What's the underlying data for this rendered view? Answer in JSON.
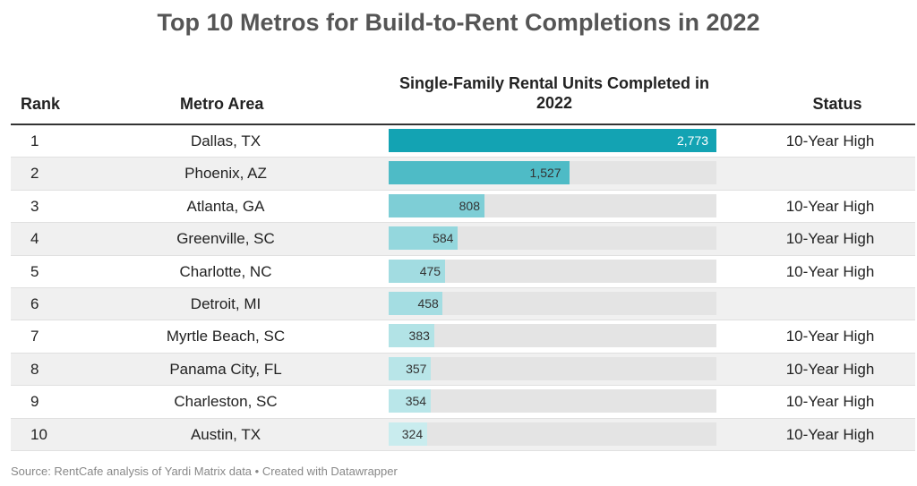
{
  "title": "Top 10 Metros for Build-to-Rent Completions in 2022",
  "headers": {
    "rank": "Rank",
    "metro": "Metro Area",
    "units": "Single-Family Rental Units Completed in 2022",
    "status": "Status"
  },
  "source": "Source: RentCafe analysis of Yardi Matrix data • Created with Datawrapper",
  "colors": {
    "bar_max": "#13a3b3",
    "bar_min": "#c9ecee",
    "track": "#e4e4e4"
  },
  "chart_data": {
    "type": "table",
    "xlim": [
      0,
      2773
    ],
    "rows": [
      {
        "rank": "1",
        "metro": "Dallas, TX",
        "units": 2773,
        "units_label": "2,773",
        "status": "10-Year High"
      },
      {
        "rank": "2",
        "metro": "Phoenix, AZ",
        "units": 1527,
        "units_label": "1,527",
        "status": ""
      },
      {
        "rank": "3",
        "metro": "Atlanta, GA",
        "units": 808,
        "units_label": "808",
        "status": "10-Year High"
      },
      {
        "rank": "4",
        "metro": "Greenville, SC",
        "units": 584,
        "units_label": "584",
        "status": "10-Year High"
      },
      {
        "rank": "5",
        "metro": "Charlotte, NC",
        "units": 475,
        "units_label": "475",
        "status": "10-Year High"
      },
      {
        "rank": "6",
        "metro": "Detroit, MI",
        "units": 458,
        "units_label": "458",
        "status": ""
      },
      {
        "rank": "7",
        "metro": "Myrtle Beach, SC",
        "units": 383,
        "units_label": "383",
        "status": "10-Year High"
      },
      {
        "rank": "8",
        "metro": "Panama City, FL",
        "units": 357,
        "units_label": "357",
        "status": "10-Year High"
      },
      {
        "rank": "9",
        "metro": "Charleston, SC",
        "units": 354,
        "units_label": "354",
        "status": "10-Year High"
      },
      {
        "rank": "10",
        "metro": "Austin, TX",
        "units": 324,
        "units_label": "324",
        "status": "10-Year High"
      }
    ]
  }
}
